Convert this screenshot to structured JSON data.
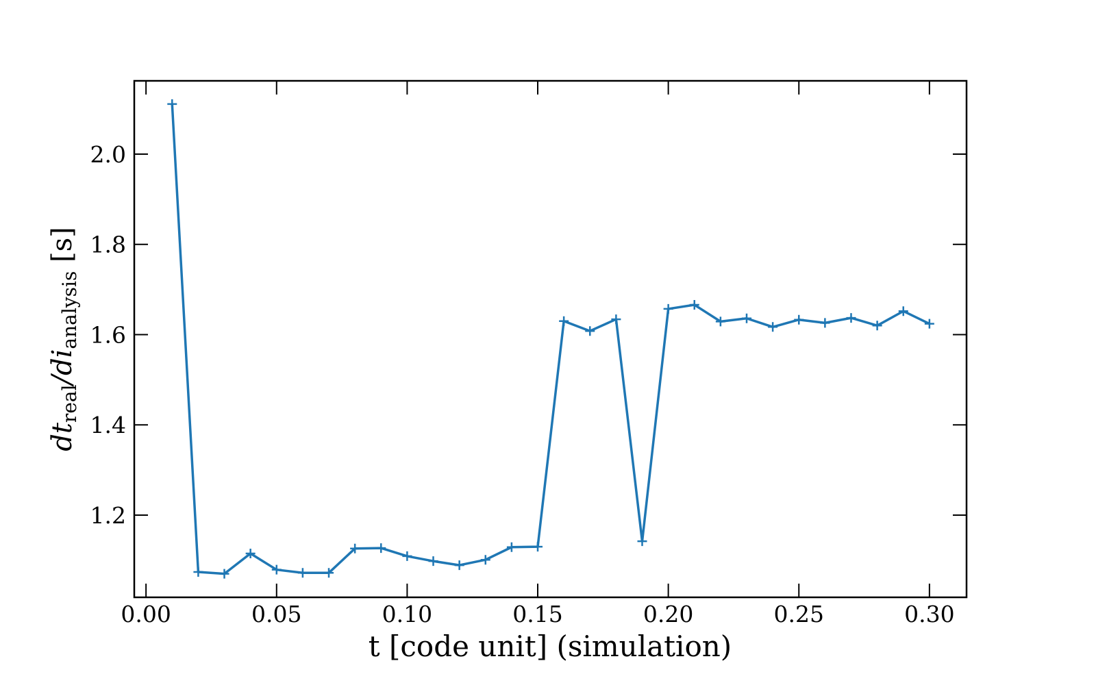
{
  "chart_data": {
    "type": "line",
    "xlabel": "t [code unit] (simulation)",
    "ylabel": "dt_real/di_analysis [s]",
    "x": [
      0.01,
      0.02,
      0.03,
      0.04,
      0.05,
      0.06,
      0.07,
      0.08,
      0.09,
      0.1,
      0.11,
      0.12,
      0.13,
      0.14,
      0.15,
      0.16,
      0.17,
      0.18,
      0.19,
      0.2,
      0.21,
      0.22,
      0.23,
      0.24,
      0.25,
      0.26,
      0.27,
      0.28,
      0.29,
      0.3
    ],
    "series": [
      {
        "color": "#1f77b4",
        "marker": "+",
        "values": [
          2.111,
          1.074,
          1.07,
          1.115,
          1.079,
          1.072,
          1.072,
          1.126,
          1.127,
          1.109,
          1.098,
          1.089,
          1.101,
          1.129,
          1.13,
          1.63,
          1.608,
          1.634,
          1.142,
          1.657,
          1.666,
          1.629,
          1.636,
          1.617,
          1.633,
          1.626,
          1.637,
          1.62,
          1.652,
          1.624
        ]
      }
    ],
    "xlim": [
      -0.0045,
      0.3142
    ],
    "ylim": [
      1.0178,
      2.1624
    ],
    "xticks": [
      {
        "value": 0,
        "label": "0.00"
      },
      0.05,
      {
        "value": 0.1,
        "label": "0.10"
      },
      0.15,
      {
        "value": 0.2,
        "label": "0.20"
      },
      0.25,
      {
        "value": 0.3,
        "label": "0.30"
      }
    ],
    "yticks": [
      1.2,
      1.4,
      1.6,
      1.8,
      {
        "value": 2,
        "label": "2.0"
      }
    ],
    "tick_direction": "in",
    "grid": false
  }
}
